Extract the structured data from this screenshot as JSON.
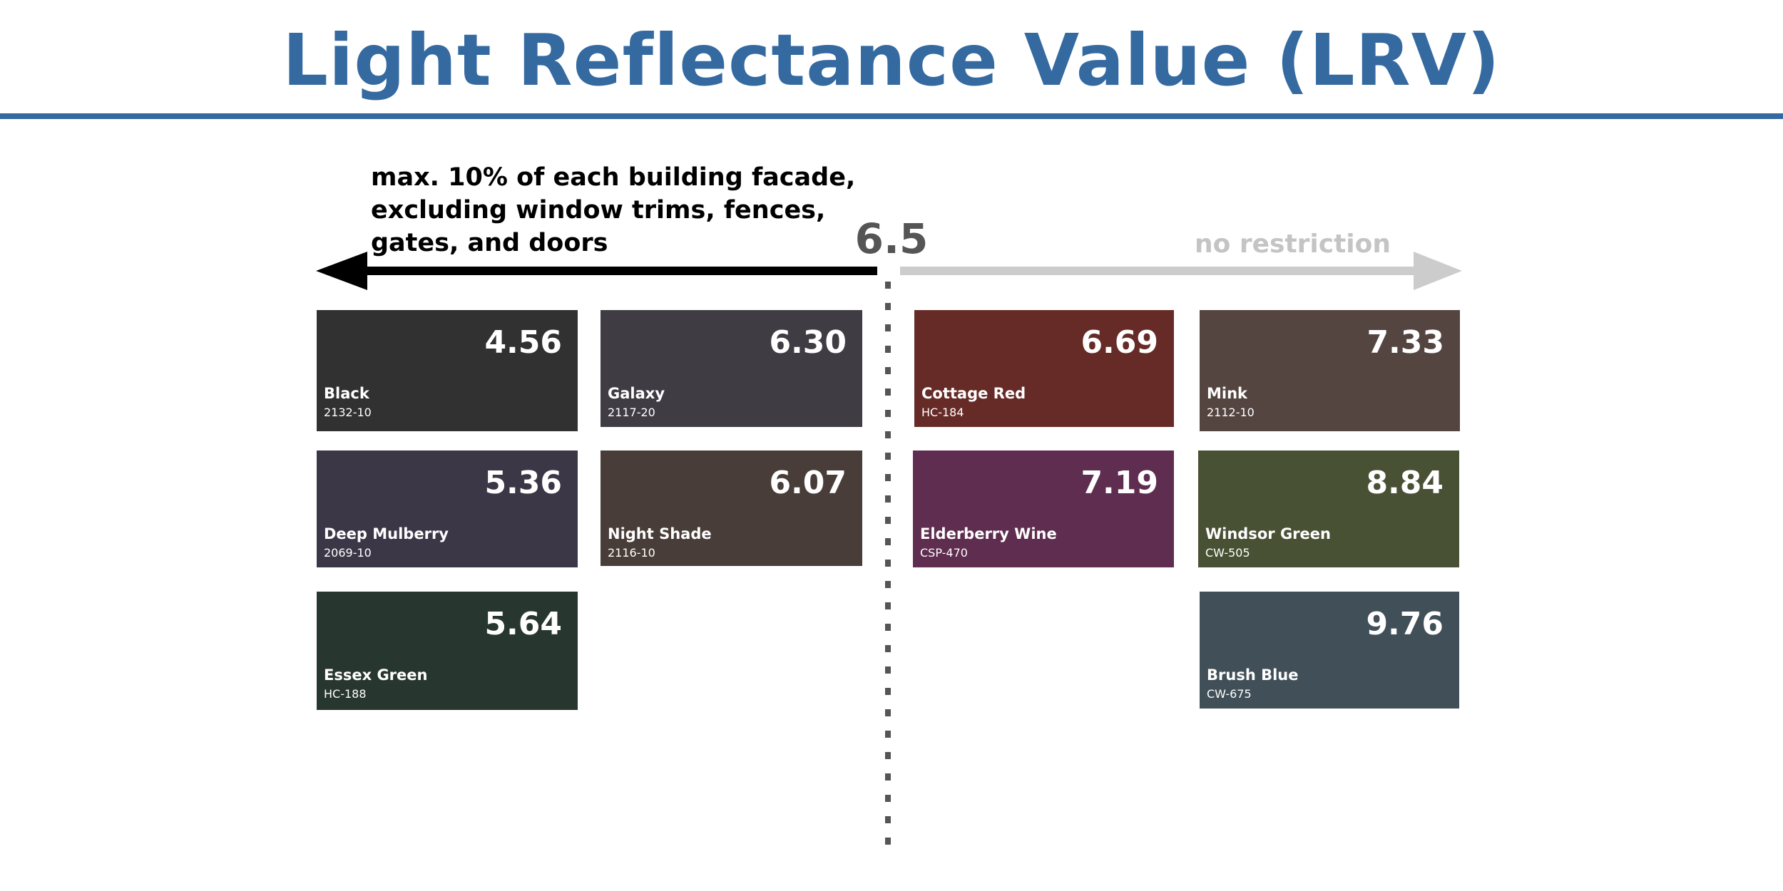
{
  "header": {
    "title": "Light Reflectance Value (LRV)"
  },
  "scale": {
    "threshold": "6.5",
    "left_note": "max. 10% of each building facade,\nexcluding window trims, fences,\ngates, and doors",
    "right_note": "no restriction",
    "left_arrow_color": "#000000",
    "right_arrow_color": "#cccccc"
  },
  "swatches": [
    {
      "name": "Black",
      "code": "2132-10",
      "lrv": "4.56",
      "color": "#313131"
    },
    {
      "name": "Galaxy",
      "code": "2117-20",
      "lrv": "6.30",
      "color": "#3f3c44"
    },
    {
      "name": "Cottage Red",
      "code": "HC-184",
      "lrv": "6.69",
      "color": "#672b27"
    },
    {
      "name": "Mink",
      "code": "2112-10",
      "lrv": "7.33",
      "color": "#544540"
    },
    {
      "name": "Deep Mulberry",
      "code": "2069-10",
      "lrv": "5.36",
      "color": "#3c3747"
    },
    {
      "name": "Night Shade",
      "code": "2116-10",
      "lrv": "6.07",
      "color": "#483d38"
    },
    {
      "name": "Elderberry Wine",
      "code": "CSP-470",
      "lrv": "7.19",
      "color": "#5e2d4f"
    },
    {
      "name": "Windsor Green",
      "code": "CW-505",
      "lrv": "8.84",
      "color": "#495134"
    },
    {
      "name": "Essex Green",
      "code": "HC-188",
      "lrv": "5.64",
      "color": "#283630"
    },
    {
      "name": "Brush Blue",
      "code": "CW-675",
      "lrv": "9.76",
      "color": "#414f58"
    }
  ]
}
